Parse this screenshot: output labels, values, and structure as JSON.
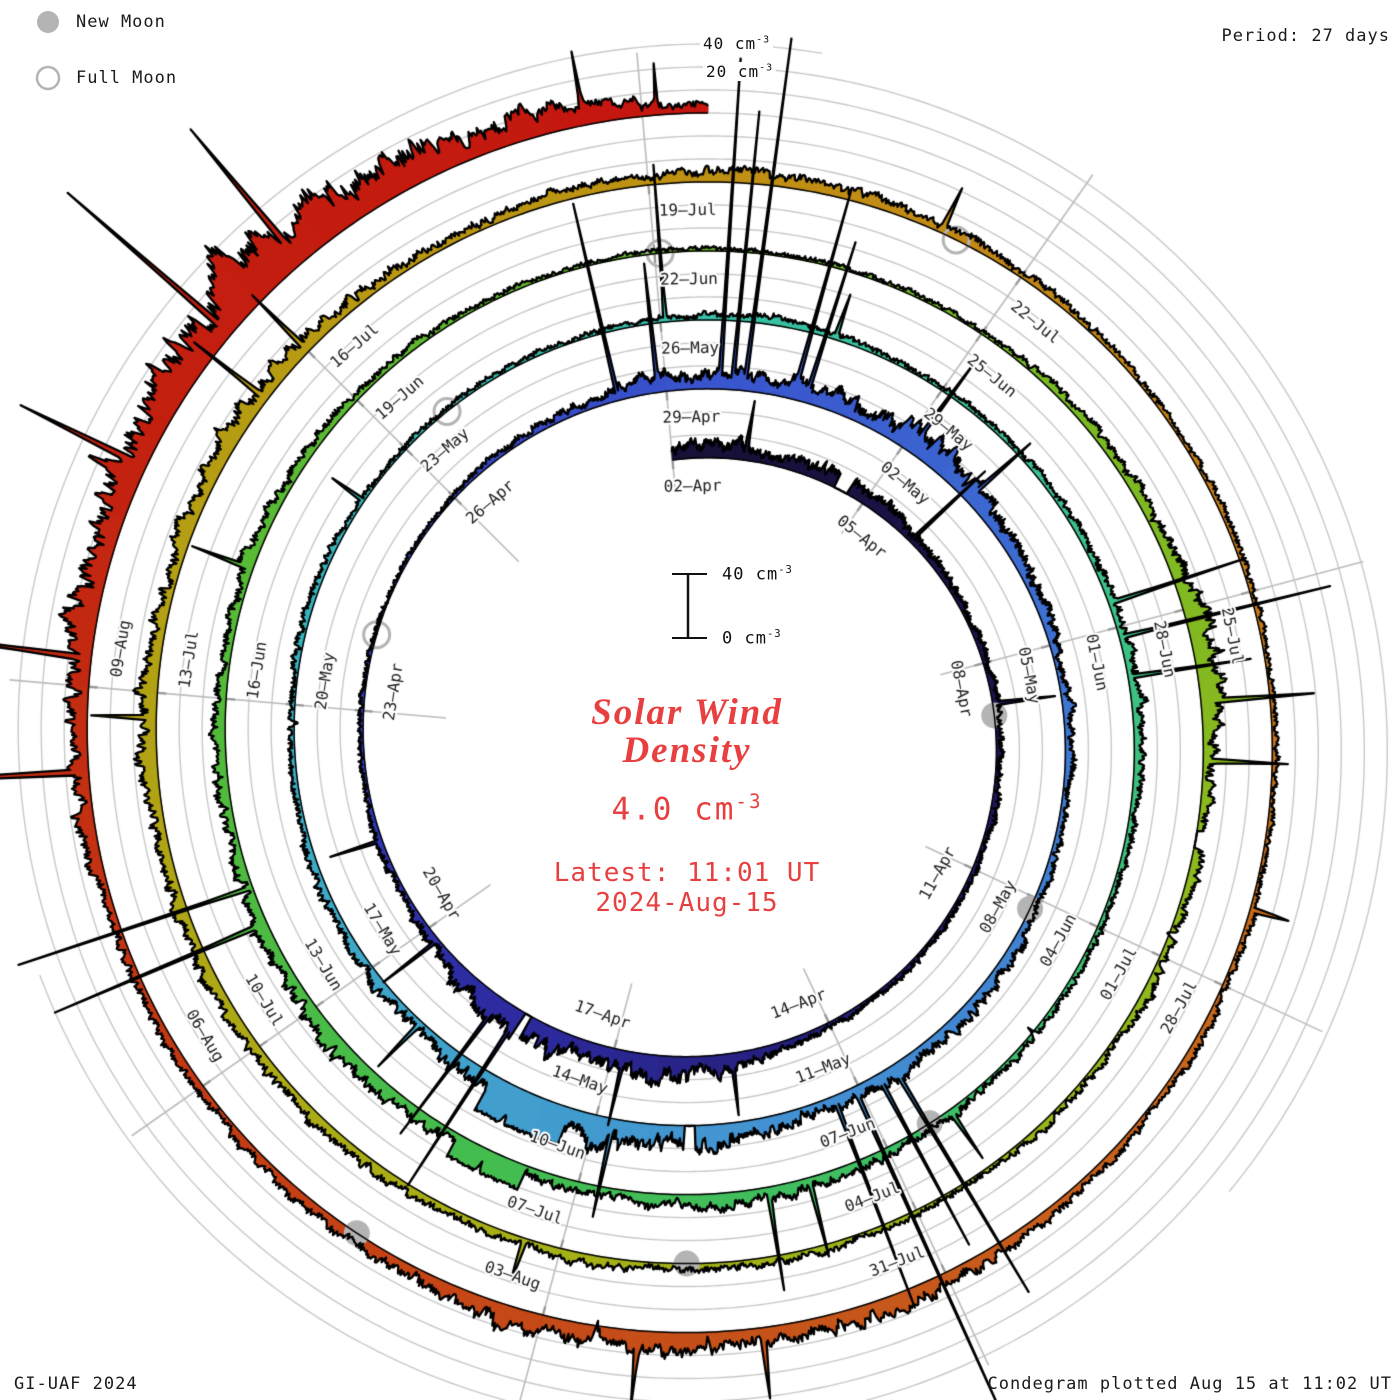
{
  "header": {
    "period_label": "Period: 27 days"
  },
  "legend": {
    "new_moon": "New Moon",
    "full_moon": "Full Moon"
  },
  "footer": {
    "left": "GI-UAF 2024",
    "right": "Condegram plotted Aug 15 at 11:02 UT"
  },
  "ring_labels": {
    "outer_value": "40 cm",
    "outer_exp": "-3",
    "inner_value": "20 cm",
    "inner_exp": "-3"
  },
  "scalebar": {
    "top_value": "40 cm",
    "top_exp": "-3",
    "bottom_value": "0 cm",
    "bottom_exp": "-3"
  },
  "center": {
    "title_line1": "Solar Wind",
    "title_line2": "Density",
    "avg_value": "4.0 cm",
    "avg_exp": "-3",
    "latest_line1": "Latest: 11:01 UT",
    "latest_line2": "2024-Aug-15"
  },
  "chart_data": {
    "type": "spiral-time-series-condegram",
    "quantity": "Solar Wind Density",
    "unit": "cm^-3",
    "period_days": 27,
    "start_date": "2024-04-02",
    "latest": "2024-08-15 11:01 UT",
    "mean_density_cm3": 4.0,
    "radial_reference_cm3": [
      0,
      20,
      40
    ],
    "days_total": 135.46,
    "date_labels": [
      {
        "label": "02–Apr",
        "day": 0
      },
      {
        "label": "05–Apr",
        "day": 3
      },
      {
        "label": "08–Apr",
        "day": 6
      },
      {
        "label": "11–Apr",
        "day": 9
      },
      {
        "label": "14–Apr",
        "day": 12
      },
      {
        "label": "17–Apr",
        "day": 15
      },
      {
        "label": "20–Apr",
        "day": 18
      },
      {
        "label": "23–Apr",
        "day": 21
      },
      {
        "label": "26–Apr",
        "day": 24
      },
      {
        "label": "29–Apr",
        "day": 27
      },
      {
        "label": "02–May",
        "day": 30
      },
      {
        "label": "05–May",
        "day": 33
      },
      {
        "label": "08–May",
        "day": 36
      },
      {
        "label": "11–May",
        "day": 39
      },
      {
        "label": "14–May",
        "day": 42
      },
      {
        "label": "17–May",
        "day": 45
      },
      {
        "label": "20–May",
        "day": 48
      },
      {
        "label": "23–May",
        "day": 51
      },
      {
        "label": "26–May",
        "day": 54
      },
      {
        "label": "29–May",
        "day": 57
      },
      {
        "label": "01–Jun",
        "day": 60
      },
      {
        "label": "04–Jun",
        "day": 63
      },
      {
        "label": "07–Jun",
        "day": 66
      },
      {
        "label": "10–Jun",
        "day": 69
      },
      {
        "label": "13–Jun",
        "day": 72
      },
      {
        "label": "16–Jun",
        "day": 75
      },
      {
        "label": "19–Jun",
        "day": 78
      },
      {
        "label": "22–Jun",
        "day": 81
      },
      {
        "label": "25–Jun",
        "day": 84
      },
      {
        "label": "28–Jun",
        "day": 87
      },
      {
        "label": "01–Jul",
        "day": 90
      },
      {
        "label": "04–Jul",
        "day": 93
      },
      {
        "label": "07–Jul",
        "day": 96
      },
      {
        "label": "10–Jul",
        "day": 99
      },
      {
        "label": "13–Jul",
        "day": 102
      },
      {
        "label": "16–Jul",
        "day": 105
      },
      {
        "label": "19–Jul",
        "day": 108
      },
      {
        "label": "22–Jul",
        "day": 111
      },
      {
        "label": "25–Jul",
        "day": 114
      },
      {
        "label": "28–Jul",
        "day": 117
      },
      {
        "label": "31–Jul",
        "day": 120
      },
      {
        "label": "03–Aug",
        "day": 123
      },
      {
        "label": "06–Aug",
        "day": 126
      },
      {
        "label": "09–Aug",
        "day": 129
      }
    ],
    "moons": {
      "new_moon_days": [
        6.77,
        36.14,
        65.53,
        94.96,
        124.47
      ],
      "full_moon_days": [
        21.99,
        51.58,
        81.05,
        110.43
      ]
    },
    "color_stops": [
      [
        0,
        "#171036"
      ],
      [
        8,
        "#1d1758"
      ],
      [
        13,
        "#262180"
      ],
      [
        16,
        "#2d2a9c"
      ],
      [
        20,
        "#3038b6"
      ],
      [
        24,
        "#3646c4"
      ],
      [
        28,
        "#3a57cf"
      ],
      [
        34,
        "#3f77d3"
      ],
      [
        40,
        "#4492d2"
      ],
      [
        45,
        "#3fa8ca"
      ],
      [
        49,
        "#37b5be"
      ],
      [
        53,
        "#36bfb0"
      ],
      [
        57,
        "#3ac398"
      ],
      [
        62,
        "#3ec07b"
      ],
      [
        66,
        "#3fbf64"
      ],
      [
        70,
        "#45bd4f"
      ],
      [
        75,
        "#53ba3a"
      ],
      [
        80,
        "#64ba2c"
      ],
      [
        85,
        "#79ba24"
      ],
      [
        90,
        "#90b91d"
      ],
      [
        95,
        "#a4b318"
      ],
      [
        100,
        "#afa816"
      ],
      [
        104,
        "#b69d14"
      ],
      [
        108,
        "#bf9313"
      ],
      [
        112,
        "#c58418"
      ],
      [
        116,
        "#c96f1c"
      ],
      [
        120,
        "#c75a1c"
      ],
      [
        124,
        "#c54517"
      ],
      [
        128,
        "#c33113"
      ],
      [
        131,
        "#c32010"
      ],
      [
        136,
        "#c6150f"
      ]
    ],
    "envelope_day_value": [
      [
        0,
        13
      ],
      [
        0.8,
        16
      ],
      [
        1.5,
        12
      ],
      [
        2.2,
        15
      ],
      [
        3,
        14
      ],
      [
        4,
        12
      ],
      [
        4.6,
        7
      ],
      [
        6,
        6
      ],
      [
        8,
        5
      ],
      [
        10,
        4
      ],
      [
        12,
        5
      ],
      [
        12.8,
        9
      ],
      [
        13.5,
        18
      ],
      [
        14.5,
        22
      ],
      [
        15.3,
        18
      ],
      [
        16,
        23
      ],
      [
        16.8,
        21
      ],
      [
        17.5,
        12
      ],
      [
        18.5,
        7
      ],
      [
        20,
        4
      ],
      [
        22,
        3
      ],
      [
        23.5,
        2.5
      ],
      [
        25,
        5
      ],
      [
        26,
        10
      ],
      [
        26.8,
        16
      ],
      [
        27.5,
        18
      ],
      [
        28.3,
        14
      ],
      [
        29.3,
        20
      ],
      [
        30.3,
        26
      ],
      [
        31.2,
        18
      ],
      [
        32.5,
        10
      ],
      [
        34,
        7
      ],
      [
        36,
        8
      ],
      [
        37.5,
        10
      ],
      [
        38.5,
        15
      ],
      [
        39.2,
        12
      ],
      [
        40.3,
        18
      ],
      [
        41.2,
        22
      ],
      [
        42.6,
        24
      ],
      [
        43.6,
        16
      ],
      [
        44.6,
        11
      ],
      [
        46,
        7
      ],
      [
        47.5,
        5
      ],
      [
        49,
        6
      ],
      [
        51,
        4
      ],
      [
        52.5,
        3.5
      ],
      [
        54,
        4
      ],
      [
        55.5,
        7
      ],
      [
        56.5,
        5
      ],
      [
        58,
        4.5
      ],
      [
        59.5,
        8
      ],
      [
        60.5,
        11
      ],
      [
        61.5,
        7
      ],
      [
        63,
        5
      ],
      [
        64.5,
        6
      ],
      [
        66,
        9
      ],
      [
        67.5,
        13
      ],
      [
        68.5,
        11
      ],
      [
        69.8,
        9
      ],
      [
        71,
        13
      ],
      [
        72.5,
        16
      ],
      [
        73.5,
        11
      ],
      [
        75,
        9
      ],
      [
        75.8,
        12
      ],
      [
        76.8,
        10
      ],
      [
        78,
        6
      ],
      [
        80,
        3.5
      ],
      [
        82,
        3
      ],
      [
        84,
        4.5
      ],
      [
        85.5,
        8
      ],
      [
        86.5,
        13
      ],
      [
        87.6,
        22
      ],
      [
        88.3,
        15
      ],
      [
        89.5,
        9
      ],
      [
        91,
        7
      ],
      [
        92.5,
        5.5
      ],
      [
        94,
        7
      ],
      [
        95.5,
        9
      ],
      [
        97,
        8
      ],
      [
        99,
        11
      ],
      [
        100.5,
        13
      ],
      [
        102,
        16
      ],
      [
        103,
        14
      ],
      [
        104.2,
        17
      ],
      [
        105.5,
        12
      ],
      [
        107,
        10
      ],
      [
        108.5,
        11
      ],
      [
        109.5,
        13
      ],
      [
        110.5,
        9
      ],
      [
        112,
        6
      ],
      [
        113.5,
        5
      ],
      [
        115,
        4
      ],
      [
        116.5,
        5
      ],
      [
        118,
        7
      ],
      [
        119.5,
        10
      ],
      [
        120.5,
        16
      ],
      [
        121.3,
        20
      ],
      [
        122,
        17
      ],
      [
        122.8,
        21
      ],
      [
        123.6,
        15
      ],
      [
        125,
        9
      ],
      [
        126.5,
        8
      ],
      [
        127.8,
        12
      ],
      [
        129,
        20
      ],
      [
        130,
        30
      ],
      [
        131,
        40
      ],
      [
        132,
        50
      ],
      [
        132.6,
        42
      ],
      [
        133.2,
        48
      ],
      [
        133.8,
        34
      ],
      [
        134.4,
        22
      ],
      [
        134.9,
        14
      ],
      [
        135.46,
        8
      ]
    ],
    "spikes_day_height_width": [
      [
        1.1,
        30,
        0.025
      ],
      [
        3.9,
        60,
        0.02
      ],
      [
        6.6,
        35,
        0.025
      ],
      [
        13.4,
        28,
        0.02
      ],
      [
        14.85,
        40,
        0.02
      ],
      [
        16.35,
        110,
        0.015
      ],
      [
        16.65,
        90,
        0.015
      ],
      [
        17.8,
        38,
        0.02
      ],
      [
        19.3,
        30,
        0.02
      ],
      [
        26.4,
        120,
        0.015
      ],
      [
        26.9,
        70,
        0.02
      ],
      [
        27.65,
        190,
        0.013
      ],
      [
        27.8,
        160,
        0.013
      ],
      [
        27.95,
        210,
        0.013
      ],
      [
        28.55,
        120,
        0.015
      ],
      [
        28.7,
        95,
        0.015
      ],
      [
        30.1,
        50,
        0.02
      ],
      [
        31,
        40,
        0.02
      ],
      [
        38.55,
        150,
        0.013
      ],
      [
        38.75,
        110,
        0.013
      ],
      [
        39.05,
        220,
        0.012
      ],
      [
        39.3,
        130,
        0.013
      ],
      [
        41.8,
        50,
        0.02
      ],
      [
        44.2,
        30,
        0.02
      ],
      [
        50.3,
        22,
        0.02
      ],
      [
        54.05,
        95,
        0.012
      ],
      [
        55.8,
        26,
        0.02
      ],
      [
        59.75,
        85,
        0.014
      ],
      [
        60.1,
        130,
        0.012
      ],
      [
        60.5,
        70,
        0.015
      ],
      [
        65.3,
        30,
        0.02
      ],
      [
        66.8,
        45,
        0.018
      ],
      [
        67.2,
        60,
        0.016
      ],
      [
        72.9,
        130,
        0.013
      ],
      [
        73.25,
        150,
        0.012
      ],
      [
        76.2,
        35,
        0.018
      ],
      [
        87.8,
        60,
        0.018
      ],
      [
        88.3,
        45,
        0.018
      ],
      [
        96.3,
        26,
        0.02
      ],
      [
        101.8,
        35,
        0.02
      ],
      [
        104.5,
        50,
        0.016
      ],
      [
        105,
        42,
        0.016
      ],
      [
        110.3,
        26,
        0.02
      ],
      [
        116.4,
        22,
        0.02
      ],
      [
        121.4,
        38,
        0.018
      ],
      [
        122.3,
        32,
        0.018
      ],
      [
        128.4,
        300,
        0.012
      ],
      [
        129.2,
        90,
        0.018
      ],
      [
        130.6,
        70,
        0.02
      ],
      [
        131.7,
        110,
        0.015
      ],
      [
        132.4,
        85,
        0.018
      ],
      [
        134.6,
        34,
        0.013
      ],
      [
        135.1,
        26,
        0.012
      ]
    ],
    "inward_notches_day_depth_width": [
      [
        15.2,
        5,
        0.03
      ],
      [
        42.9,
        6,
        0.03
      ],
      [
        47.8,
        6,
        0.035
      ],
      [
        48.6,
        5,
        0.03
      ],
      [
        64.2,
        5,
        0.03
      ],
      [
        69.9,
        6,
        0.03
      ],
      [
        89.8,
        5,
        0.03
      ],
      [
        120.6,
        9,
        0.035
      ],
      [
        121.8,
        8,
        0.03
      ],
      [
        122.6,
        7,
        0.03
      ],
      [
        133,
        6,
        0.025
      ]
    ],
    "plateau_blocks_start_end_value": [
      [
        42.3,
        43.2,
        24
      ],
      [
        69.5,
        70.2,
        15
      ]
    ],
    "data_gaps_start_end": [
      [
        2.5,
        2.72
      ],
      [
        16.18,
        16.28
      ],
      [
        40.9,
        41.02
      ],
      [
        88.9,
        89.05
      ]
    ],
    "grid_color": "#c9c9c9",
    "spoke_color": "#bcbcbc",
    "moon_color": "#b4b4b4",
    "label_color": "#1c1c1c",
    "accent_red": "#e84040"
  }
}
